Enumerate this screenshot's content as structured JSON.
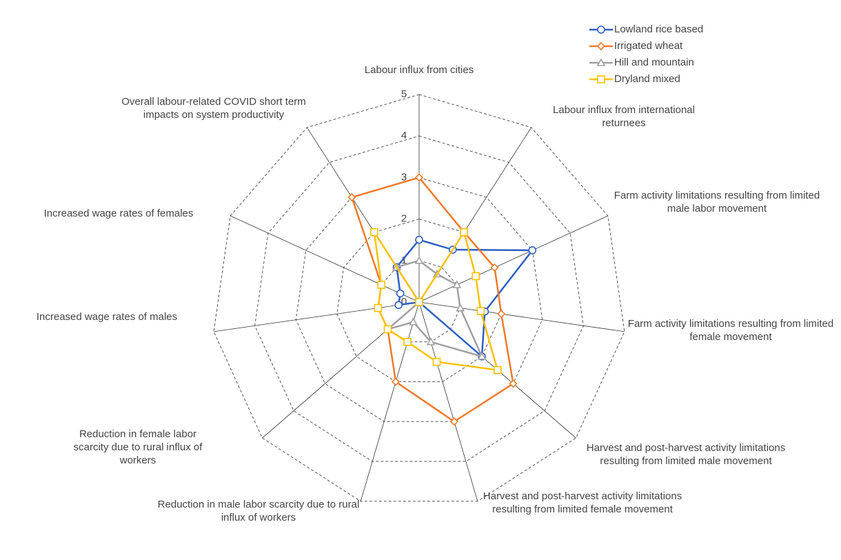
{
  "chart_data": {
    "type": "radar",
    "categories": [
      "Labour influx from cities",
      "Labour influx from international returnees",
      "Farm activity limitations resulting from limited male labor movement",
      "Farm activity limitations resulting from limited  female movement",
      "Harvest and post-harvest activity limitations resulting from limited male  movement",
      "Harvest and post-harvest activity limitations resulting from limited female movement",
      "Reduction in male labor scarcity due to rural influx of workers",
      "Reduction in female labor scarcity due to rural influx of workers",
      "Increased wage rates of males",
      "Increased wage rates of females",
      "Overall labour-related COVID short term impacts on system productivity"
    ],
    "series": [
      {
        "name": "Lowland rice based",
        "color": "#2f5fc4",
        "marker": "circle",
        "values": [
          1.5,
          1.5,
          3,
          1.6,
          2,
          0,
          0,
          0,
          0.5,
          0.5,
          1
        ]
      },
      {
        "name": "Irrigated wheat",
        "color": "#f07a2a",
        "marker": "diamond",
        "values": [
          3,
          2,
          2,
          2,
          3,
          3,
          2,
          1,
          1,
          1,
          3
        ]
      },
      {
        "name": "Hill and mountain",
        "color": "#a0a0a0",
        "marker": "triangle",
        "values": [
          1,
          0.8,
          1,
          1,
          2,
          1,
          0.5,
          1,
          0,
          0,
          1
        ]
      },
      {
        "name": "Dryland mixed",
        "color": "#ffc000",
        "marker": "square",
        "values": [
          0,
          2,
          1.5,
          1.5,
          2.5,
          1.5,
          1,
          1,
          1,
          1,
          2
        ]
      }
    ],
    "ylim": [
      0,
      5
    ],
    "yticks": [
      0,
      1,
      2,
      3,
      4,
      5
    ],
    "grid": true,
    "legend": "top-right"
  }
}
